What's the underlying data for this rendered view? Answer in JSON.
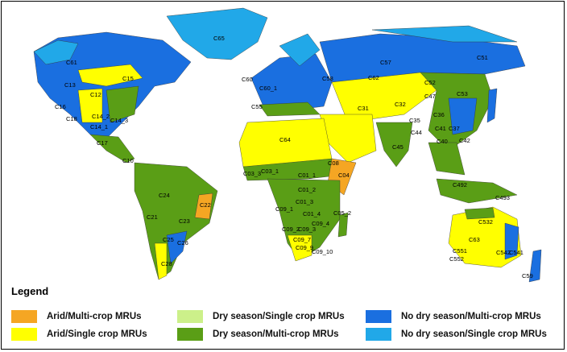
{
  "legend": {
    "title": "Legend",
    "items": [
      {
        "label": "Arid/Multi-crop MRUs",
        "color": "#f5a623"
      },
      {
        "label": "Arid/Single crop MRUs",
        "color": "#ffff00"
      },
      {
        "label": "Dry season/Single crop MRUs",
        "color": "#ccf08a"
      },
      {
        "label": "Dry season/Multi-crop MRUs",
        "color": "#5a9e16"
      },
      {
        "label": "No dry season/Multi-crop MRUs",
        "color": "#1a6fe0"
      },
      {
        "label": "No dry season/Single crop MRUs",
        "color": "#21a8e8"
      }
    ]
  },
  "map_labels": [
    "C65",
    "C61",
    "C15",
    "C13",
    "C12",
    "C16",
    "C18",
    "C14_2",
    "C14_3",
    "C14_1",
    "C17",
    "C57",
    "C51",
    "C58",
    "C60",
    "C60_1",
    "C62",
    "C52",
    "C47",
    "C53",
    "C55",
    "C31",
    "C32",
    "C35",
    "C36",
    "C37",
    "C42",
    "C41",
    "C40",
    "C64",
    "C08",
    "C03_3",
    "C03_1",
    "C01_1",
    "C01_2",
    "C01_3",
    "C04",
    "C09_1",
    "C01_4",
    "C05_2",
    "C09_4",
    "C09_2",
    "C09_3",
    "C09_7",
    "C09_9",
    "C09_10",
    "C24",
    "C22",
    "C21",
    "C23",
    "C25",
    "C26",
    "C28",
    "C63",
    "C532",
    "C551",
    "C552",
    "C542",
    "C541",
    "C59",
    "C492",
    "C493",
    "C10",
    "C45",
    "C44"
  ]
}
